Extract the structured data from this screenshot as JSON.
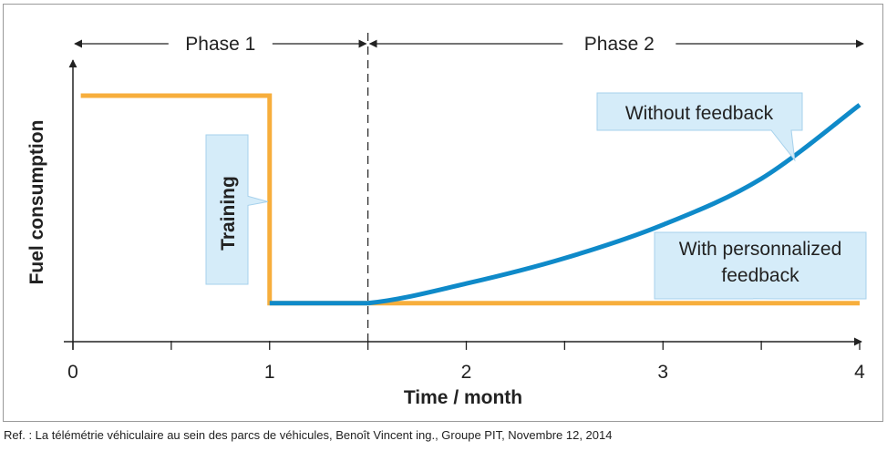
{
  "chart_data": {
    "type": "line",
    "xlabel": "Time / month",
    "ylabel": "Fuel consumption",
    "xlim": [
      0,
      4
    ],
    "x_ticks": [
      0,
      0.5,
      1,
      1.5,
      2,
      2.5,
      3,
      3.5,
      4
    ],
    "x_tick_labels": [
      "0",
      "1",
      "2",
      "3",
      "4"
    ],
    "x_tick_label_values": [
      0,
      1,
      2,
      3,
      4
    ],
    "ylim": [
      0,
      1
    ],
    "phase_divider_x": 1.5,
    "phases": [
      {
        "label": "Phase 1",
        "from": 0,
        "to": 1.5
      },
      {
        "label": "Phase 2",
        "from": 1.5,
        "to": 4
      }
    ],
    "series": [
      {
        "name": "With personnalized feedback",
        "color": "#f7ae3c",
        "points": [
          [
            0.04,
            0.98
          ],
          [
            1,
            0.98
          ],
          [
            1,
            0.08
          ],
          [
            1.5,
            0.08
          ],
          [
            4,
            0.08
          ]
        ]
      },
      {
        "name": "Without feedback",
        "color": "#0f8ac9",
        "points": [
          [
            1,
            0.08
          ],
          [
            1.5,
            0.08
          ],
          [
            2,
            0.165
          ],
          [
            2.5,
            0.275
          ],
          [
            3,
            0.42
          ],
          [
            3.5,
            0.62
          ],
          [
            4,
            0.94
          ]
        ]
      }
    ],
    "callouts": [
      {
        "text": "Training",
        "vertical": true,
        "anchor_series": 0,
        "anchor": [
          1,
          0.52
        ]
      },
      {
        "text": "Without feedback",
        "anchor_series": 1,
        "anchor": [
          3.67,
          0.7
        ]
      },
      {
        "lines": [
          "With personnalized",
          "feedback"
        ],
        "anchor_series": 0,
        "anchor": [
          3.47,
          0.08
        ]
      }
    ]
  },
  "colors": {
    "callout_fill": "#d5ecf9",
    "callout_border": "#a6d1ec",
    "axis": "#222222",
    "frame": "#9a9a9a"
  },
  "ref_text": "Ref. : La télémétrie véhiculaire au sein des parcs de véhicules, Benoît Vincent ing., Groupe PIT, Novembre 12, 2014"
}
